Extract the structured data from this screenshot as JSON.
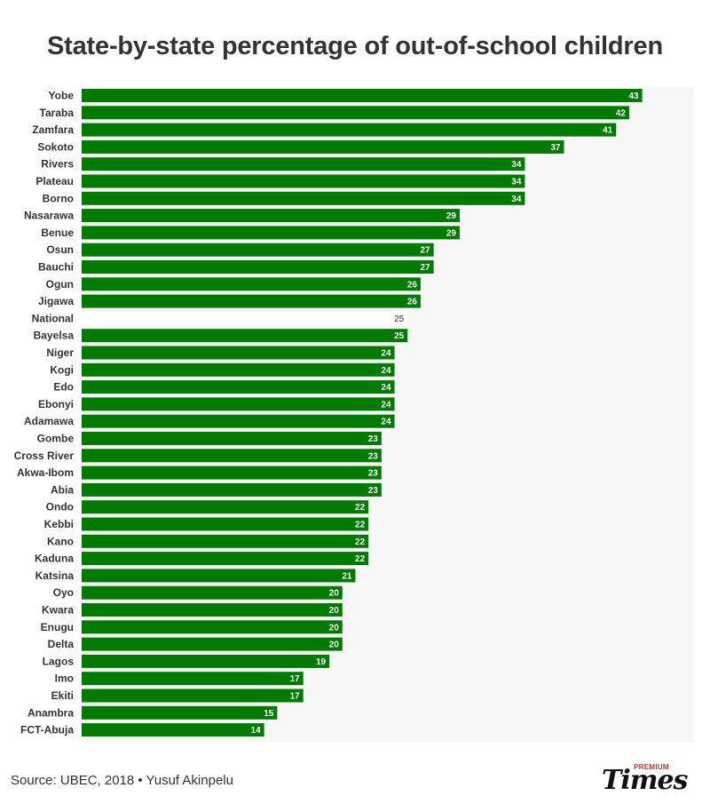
{
  "colors": {
    "bar": "#007a00",
    "national_bar": "#ffffff",
    "plot_bg": "#f7f7f7"
  },
  "chart_data": {
    "type": "bar",
    "orientation": "horizontal",
    "title": "State-by-state percentage of out-of-school children",
    "categories": [
      "Yobe",
      "Taraba",
      "Zamfara",
      "Sokoto",
      "Rivers",
      "Plateau",
      "Borno",
      "Nasarawa",
      "Benue",
      "Osun",
      "Bauchi",
      "Ogun",
      "Jigawa",
      "National",
      "Bayelsa",
      "Niger",
      "Kogi",
      "Edo",
      "Ebonyi",
      "Adamawa",
      "Gombe",
      "Cross River",
      "Akwa-Ibom",
      "Abia",
      "Ondo",
      "Kebbi",
      "Kano",
      "Kaduna",
      "Katsina",
      "Oyo",
      "Kwara",
      "Enugu",
      "Delta",
      "Lagos",
      "Imo",
      "Ekiti",
      "Anambra",
      "FCT-Abuja"
    ],
    "values": [
      43,
      42,
      41,
      37,
      34,
      34,
      34,
      29,
      29,
      27,
      27,
      26,
      26,
      25,
      25,
      24,
      24,
      24,
      24,
      24,
      23,
      23,
      23,
      23,
      22,
      22,
      22,
      22,
      21,
      20,
      20,
      20,
      20,
      19,
      17,
      17,
      15,
      14
    ],
    "highlight": "National",
    "xlim": [
      0,
      45
    ],
    "grid": false,
    "data_labels": true
  },
  "footer": {
    "source": "Source: UBEC, 2018 • Yusuf Akinpelu"
  },
  "logo": {
    "premium": "PREMIUM",
    "times": "Times"
  }
}
